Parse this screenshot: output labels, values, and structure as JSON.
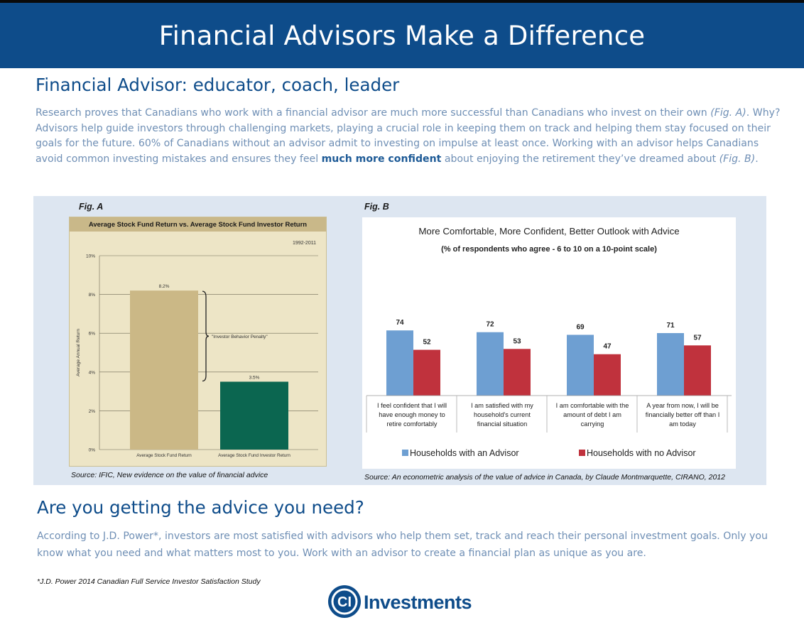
{
  "banner": {
    "title": "Financial Advisors Make a Difference"
  },
  "section1": {
    "heading": "Financial Advisor: educator, coach, leader",
    "intro_parts": {
      "p1": "Research proves that Canadians who work with a financial advisor are much more successful than Canadians who invest on their own ",
      "fig_a_ref": "(Fig. A)",
      "p2": ". Why? Advisors help guide investors through challenging markets, playing a crucial role in keeping them on track and helping them stay focused on their goals for the future.  60% of Canadians without an advisor admit to investing on impulse at least once.  Working with an advisor helps Canadians avoid common investing mistakes and ensures they feel ",
      "emphasis": "much more confident",
      "p3": " about enjoying the retirement they’ve dreamed about ",
      "fig_b_ref": "(Fig. B)",
      "p4": "."
    }
  },
  "fig_a": {
    "label": "Fig. A",
    "source": "Source: IFIC, New evidence on the value of financial advice"
  },
  "fig_b": {
    "label": "Fig. B",
    "source": "Source: An econometric analysis of the value of advice in Canada, by Claude Montmarquette,  CIRANO, 2012"
  },
  "chart_data": [
    {
      "type": "bar",
      "title": "Average Stock Fund Return vs. Average Stock Fund Investor Return",
      "subtitle": "1992-2011",
      "ylabel": "Average Annual Return",
      "ylim": [
        0,
        10
      ],
      "yticks": [
        "0%",
        "2%",
        "4%",
        "6%",
        "8%",
        "10%"
      ],
      "categories": [
        "Average Stock Fund Return",
        "Average Stock Fund Investor Return"
      ],
      "values": [
        8.2,
        3.5
      ],
      "value_labels": [
        "8.2%",
        "3.5%"
      ],
      "colors": [
        "#cbb886",
        "#0b6650"
      ],
      "annotation": "\"Investor Behavior Penalty\"",
      "grid": true
    },
    {
      "type": "bar",
      "title": "More Comfortable, More Confident, Better Outlook with Advice",
      "subtitle": "(% of respondents who agree - 6 to 10 on a 10-point scale)",
      "categories": [
        [
          "I feel confident that I will",
          "have enough money to",
          "retire comfortably"
        ],
        [
          "I am satisfied with my",
          "household's current",
          "financial situation"
        ],
        [
          "I am comfortable with the",
          "amount of debt I am",
          "carrying"
        ],
        [
          "A year from now, I will be",
          "financially better off than I",
          "am today"
        ]
      ],
      "series": [
        {
          "name": "Households with an Advisor",
          "values": [
            74,
            72,
            69,
            71
          ],
          "color": "#6e9fd2"
        },
        {
          "name": "Households with no Advisor",
          "values": [
            52,
            53,
            47,
            57
          ],
          "color": "#c0323d"
        }
      ],
      "ylim": [
        0,
        100
      ],
      "legend": "bottom",
      "grid": false
    }
  ],
  "section2": {
    "heading": "Are you getting the advice you need?",
    "body": "According to J.D. Power*, investors are most satisfied with advisors who help them set, track and reach their personal investment goals. Only you know what you need and what matters most to you.  Work with an advisor to create a financial plan as unique as you are.",
    "footnote": "*J.D. Power 2014 Canadian Full Service Investor Satisfaction Study"
  },
  "logo": {
    "brand": "CI Investments",
    "mark": "CI",
    "word": "Investments",
    "color": "#0e4c8a"
  }
}
